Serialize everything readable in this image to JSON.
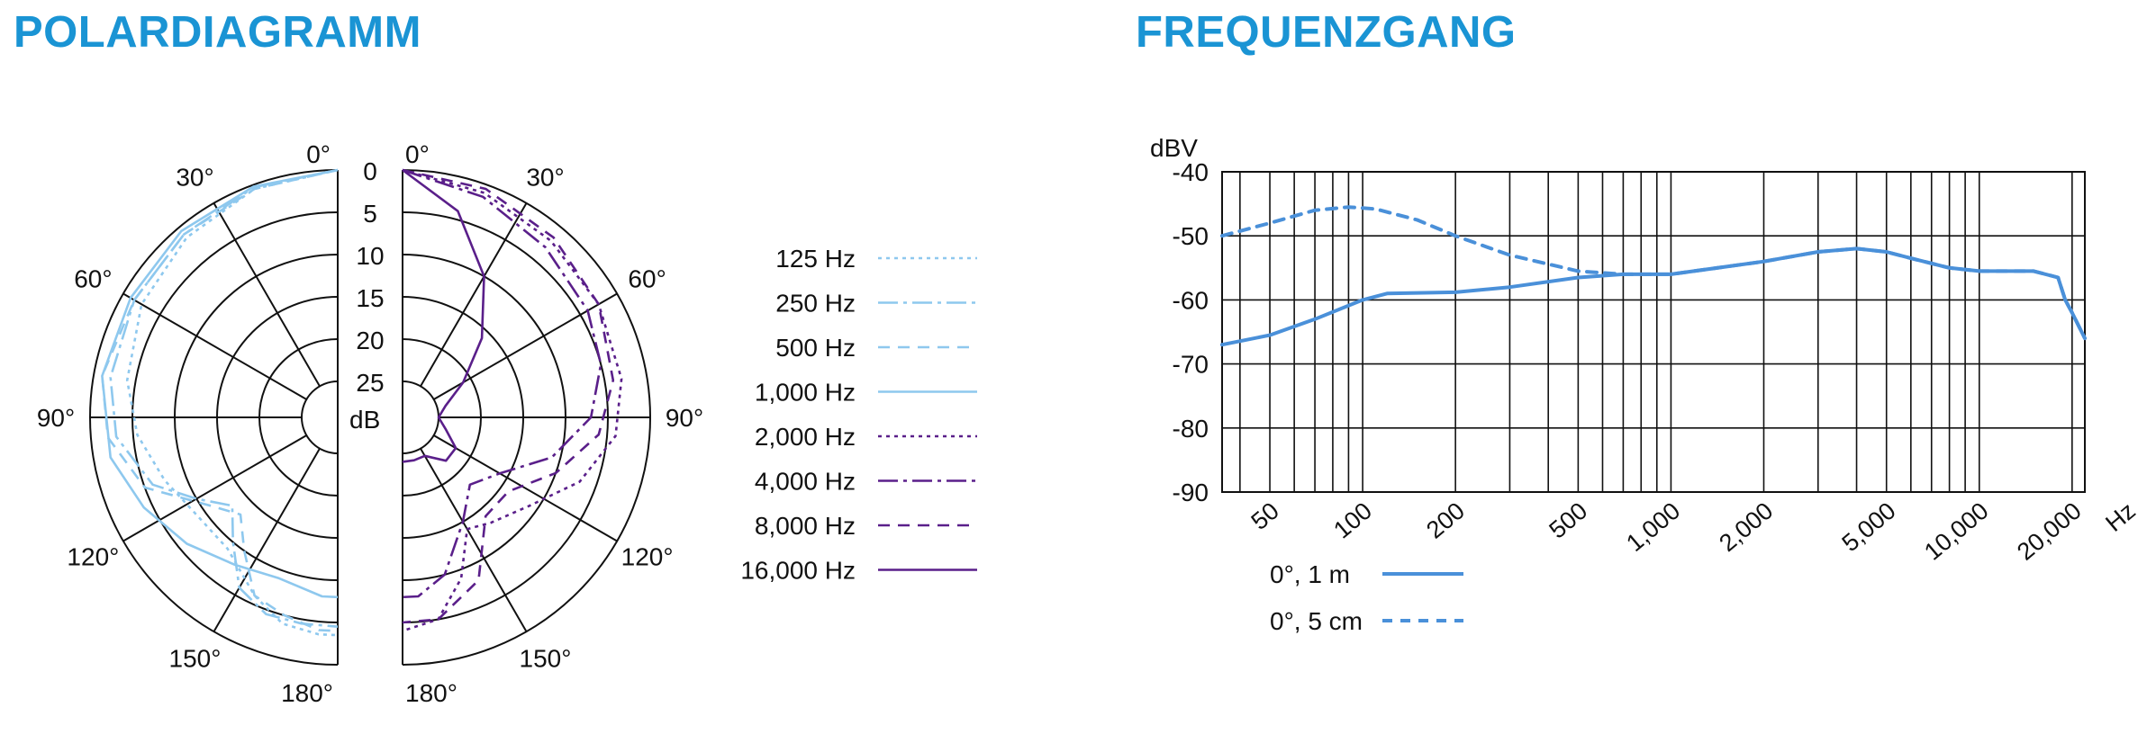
{
  "titles": {
    "polar": "POLARDIAGRAMM",
    "frequency": "FREQUENZGANG"
  },
  "colors": {
    "title": "#1a94d4",
    "low_freq": "#8ec8ee",
    "high_freq": "#5a1f8a",
    "response": "#4a90d9",
    "grid": "#111111"
  },
  "chart_data": [
    {
      "type": "polar",
      "title": "POLARDIAGRAMM",
      "angle_labels": [
        "0°",
        "30°",
        "60°",
        "90°",
        "120°",
        "150°",
        "180°"
      ],
      "radial_unit": "dB",
      "radial_labels": [
        "0",
        "5",
        "10",
        "15",
        "20",
        "25"
      ],
      "rlim": [
        0,
        25
      ],
      "series_left": [
        {
          "name": "125 Hz",
          "style": "dotted",
          "color": "#8ec8ee",
          "points": [
            [
              0,
              0
            ],
            [
              20,
              0.5
            ],
            [
              40,
              1.5
            ],
            [
              60,
              2.5
            ],
            [
              80,
              4
            ],
            [
              95,
              5.5
            ],
            [
              110,
              7.5
            ],
            [
              125,
              9
            ],
            [
              140,
              9
            ],
            [
              155,
              6
            ],
            [
              165,
              4
            ],
            [
              175,
              3.5
            ],
            [
              180,
              3.5
            ]
          ]
        },
        {
          "name": "250 Hz",
          "style": "dashdot",
          "color": "#8ec8ee",
          "points": [
            [
              0,
              0
            ],
            [
              20,
              0.3
            ],
            [
              40,
              1
            ],
            [
              60,
              1.5
            ],
            [
              80,
              2
            ],
            [
              95,
              3
            ],
            [
              110,
              6
            ],
            [
              120,
              10
            ],
            [
              130,
              13
            ],
            [
              140,
              10
            ],
            [
              150,
              6
            ],
            [
              160,
              4.5
            ],
            [
              170,
              4.5
            ],
            [
              180,
              4.5
            ]
          ]
        },
        {
          "name": "500 Hz",
          "style": "dashed",
          "color": "#8ec8ee",
          "points": [
            [
              0,
              0
            ],
            [
              20,
              0.5
            ],
            [
              40,
              1
            ],
            [
              60,
              1.5
            ],
            [
              80,
              1
            ],
            [
              95,
              2
            ],
            [
              110,
              5
            ],
            [
              125,
              11
            ],
            [
              135,
              13
            ],
            [
              145,
              10
            ],
            [
              155,
              6
            ],
            [
              165,
              5
            ],
            [
              175,
              4
            ],
            [
              180,
              4
            ]
          ]
        },
        {
          "name": "1,000 Hz",
          "style": "solid",
          "color": "#8ec8ee",
          "points": [
            [
              0,
              0
            ],
            [
              20,
              0.2
            ],
            [
              40,
              0.5
            ],
            [
              60,
              1
            ],
            [
              80,
              1
            ],
            [
              100,
              2
            ],
            [
              115,
              4
            ],
            [
              130,
              6
            ],
            [
              145,
              8
            ],
            [
              160,
              9
            ],
            [
              175,
              8
            ],
            [
              180,
              8
            ]
          ]
        }
      ],
      "series_right": [
        {
          "name": "2,000 Hz",
          "style": "dotted",
          "color": "#5a1f8a",
          "points": [
            [
              0,
              0
            ],
            [
              20,
              1
            ],
            [
              40,
              2
            ],
            [
              60,
              2.5
            ],
            [
              80,
              3
            ],
            [
              95,
              4
            ],
            [
              110,
              7
            ],
            [
              125,
              11
            ],
            [
              140,
              13
            ],
            [
              150,
              14
            ],
            [
              160,
              9
            ],
            [
              170,
              5
            ],
            [
              180,
              4
            ]
          ]
        },
        {
          "name": "4,000 Hz",
          "style": "dashdot",
          "color": "#5a1f8a",
          "points": [
            [
              0,
              0
            ],
            [
              20,
              1.5
            ],
            [
              40,
              3
            ],
            [
              60,
              4
            ],
            [
              75,
              5
            ],
            [
              90,
              7
            ],
            [
              105,
              11
            ],
            [
              120,
              16
            ],
            [
              135,
              18
            ],
            [
              150,
              15
            ],
            [
              165,
              10
            ],
            [
              175,
              8
            ],
            [
              180,
              8
            ]
          ]
        },
        {
          "name": "8,000 Hz",
          "style": "dashed",
          "color": "#5a1f8a",
          "points": [
            [
              0,
              0
            ],
            [
              20,
              0.5
            ],
            [
              40,
              1.5
            ],
            [
              60,
              2.5
            ],
            [
              80,
              4
            ],
            [
              95,
              6
            ],
            [
              110,
              10
            ],
            [
              125,
              14
            ],
            [
              140,
              14
            ],
            [
              155,
              8
            ],
            [
              170,
              5
            ],
            [
              180,
              5
            ]
          ]
        },
        {
          "name": "16,000 Hz",
          "style": "solid",
          "color": "#5a1f8a",
          "points": [
            [
              0,
              0
            ],
            [
              15,
              4
            ],
            [
              30,
              10
            ],
            [
              45,
              16
            ],
            [
              60,
              21
            ],
            [
              75,
              24
            ],
            [
              90,
              25
            ],
            [
              105,
              24
            ],
            [
              120,
              22
            ],
            [
              135,
              22
            ],
            [
              150,
              24
            ],
            [
              165,
              24
            ],
            [
              180,
              24
            ]
          ]
        }
      ],
      "legend": [
        "125 Hz",
        "250 Hz",
        "500 Hz",
        "1,000 Hz",
        "2,000 Hz",
        "4,000 Hz",
        "8,000 Hz",
        "16,000 Hz"
      ]
    },
    {
      "type": "line",
      "title": "FREQUENZGANG",
      "ylabel": "dBV",
      "xlabel": "Hz",
      "x_scale": "log",
      "xlim": [
        35,
        22000
      ],
      "ylim": [
        -90,
        -40
      ],
      "yticks": [
        "-40",
        "-50",
        "-60",
        "-70",
        "-80",
        "-90"
      ],
      "xtick_labels": [
        {
          "label": "50",
          "value": 50
        },
        {
          "label": "100",
          "value": 100
        },
        {
          "label": "200",
          "value": 200
        },
        {
          "label": "500",
          "value": 500
        },
        {
          "label": "1,000",
          "value": 1000
        },
        {
          "label": "2,000",
          "value": 2000
        },
        {
          "label": "5,000",
          "value": 5000
        },
        {
          "label": "10,000",
          "value": 10000
        },
        {
          "label": "20,000",
          "value": 20000
        }
      ],
      "grid": true,
      "series": [
        {
          "name": "0°, 1 m",
          "style": "solid",
          "color": "#4a90d9",
          "x": [
            35,
            50,
            70,
            100,
            120,
            200,
            300,
            500,
            700,
            1000,
            2000,
            3000,
            4000,
            5000,
            6000,
            8000,
            10000,
            15000,
            18000,
            19000,
            20000,
            22000
          ],
          "y": [
            -67,
            -65.5,
            -63,
            -60,
            -59,
            -58.8,
            -58,
            -56.5,
            -56,
            -56,
            -54,
            -52.5,
            -52,
            -52.5,
            -53.5,
            -55,
            -55.5,
            -55.5,
            -56.5,
            -60,
            -62,
            -66
          ]
        },
        {
          "name": "0°, 5 cm",
          "style": "dashed",
          "color": "#4a90d9",
          "x": [
            35,
            50,
            70,
            90,
            110,
            150,
            200,
            300,
            500,
            700,
            1000,
            2000,
            3000,
            4000,
            5000,
            6000,
            8000,
            10000,
            15000,
            18000,
            19000,
            20000,
            22000
          ],
          "y": [
            -50,
            -48,
            -46,
            -45.5,
            -45.8,
            -47.5,
            -50,
            -53,
            -55.5,
            -56,
            -56,
            -54,
            -52.5,
            -52,
            -52.5,
            -53.5,
            -55,
            -55.5,
            -55.5,
            -56.5,
            -60,
            -62,
            -66
          ]
        }
      ],
      "legend": [
        "0°, 1 m",
        "0°, 5 cm"
      ]
    }
  ]
}
